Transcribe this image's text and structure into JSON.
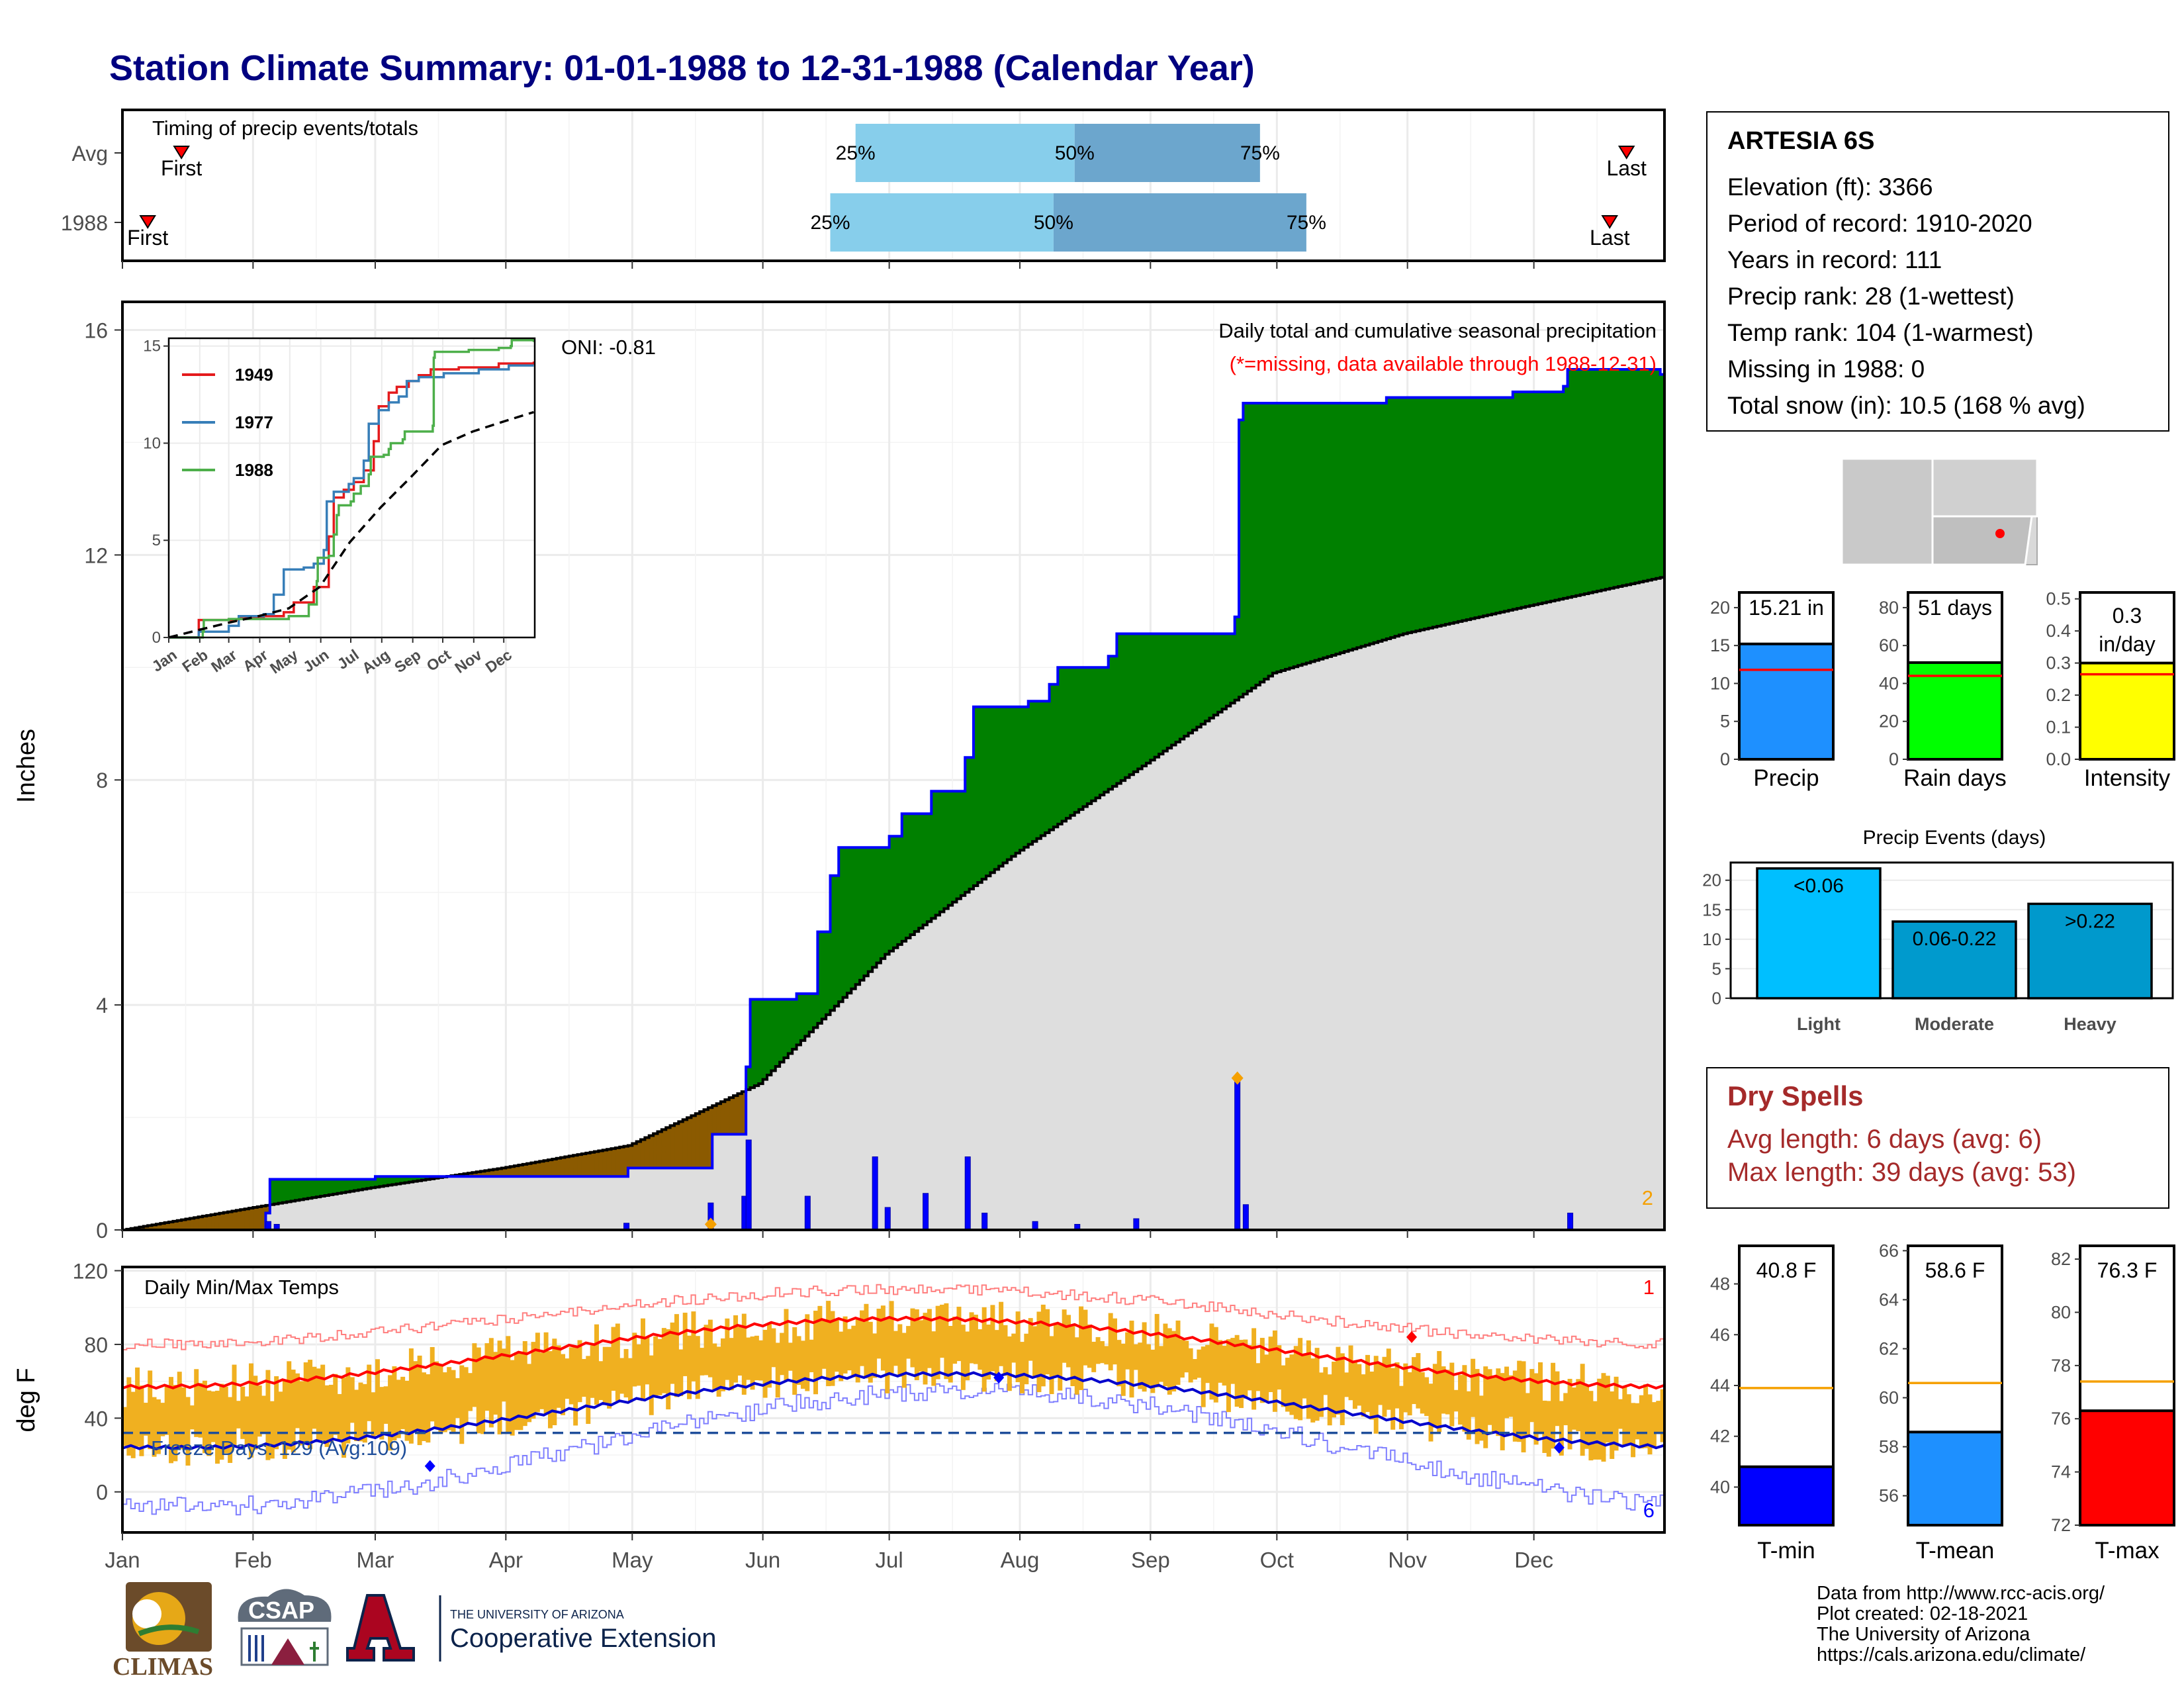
{
  "page_title": "Station Climate Summary: 01-01-1988 to 12-31-1988 (Calendar Year)",
  "station": {
    "name": "ARTESIA 6S",
    "lines": [
      "Elevation (ft): 3366",
      "Period of record: 1910-2020",
      "Years in record: 111",
      "Precip rank: 28 (1-wettest)",
      "Temp rank: 104 (1-warmest)",
      "Missing in 1988: 0",
      "Total snow (in): 10.5 (168 % avg)"
    ]
  },
  "dry_spells": {
    "title": "Dry Spells",
    "avg": "Avg length: 6 days (avg: 6)",
    "max": "Max length: 39 days (avg: 53)"
  },
  "credits": [
    "Data from http://www.rcc-acis.org/",
    "Plot created: 02-18-2021",
    "The University of Arizona",
    "https://cals.arizona.edu/climate/"
  ],
  "logos": {
    "climas": "CLIMAS",
    "csap": "CSAP",
    "ua_small": "THE UNIVERSITY OF ARIZONA",
    "ua_big": "Cooperative Extension"
  },
  "colors": {
    "title": "#000080",
    "green": "#008000",
    "brown": "#8B5A00",
    "normal_fill": "#dedede",
    "blue_line": "#0000ff",
    "orange": "#f0b020",
    "red": "#ff0000",
    "light_blue": "#87CEEB",
    "mid_blue": "#6CA6CD"
  },
  "chart_data": [
    {
      "id": "timing",
      "type": "bar",
      "title": "Timing of precip events/totals",
      "rows": [
        {
          "label": "Avg",
          "first_doy": 14,
          "last_doy": 357,
          "p25": 174,
          "p50": 226,
          "p75": 270
        },
        {
          "label": "1988",
          "first_doy": 6,
          "last_doy": 353,
          "p25": 168,
          "p50": 221,
          "p75": 281
        }
      ],
      "pct_labels": [
        "25%",
        "50%",
        "75%"
      ],
      "marker_labels": [
        "First",
        "Last"
      ],
      "x_range_doy": [
        0,
        366
      ]
    },
    {
      "id": "precip",
      "type": "area",
      "ylabel": "Inches",
      "annotation": "Daily total and cumulative seasonal precipitation",
      "missing_note": "(*=missing, data available through 1988-12-31)",
      "oni": "ONI: -0.81",
      "count_label": "2",
      "ylim": [
        0,
        16.5
      ],
      "yticks": [
        0,
        4,
        8,
        12,
        16
      ],
      "months": [
        "Jan",
        "Feb",
        "Mar",
        "Apr",
        "May",
        "Jun",
        "Jul",
        "Aug",
        "Sep",
        "Oct",
        "Nov",
        "Dec"
      ],
      "normal_cum_checkpoints": [
        [
          0,
          0
        ],
        [
          31,
          0.4
        ],
        [
          59,
          0.75
        ],
        [
          90,
          1.1
        ],
        [
          120,
          1.5
        ],
        [
          151,
          2.6
        ],
        [
          181,
          4.9
        ],
        [
          212,
          6.7
        ],
        [
          243,
          8.3
        ],
        [
          273,
          9.9
        ],
        [
          304,
          10.6
        ],
        [
          334,
          11.1
        ],
        [
          365,
          11.6
        ]
      ],
      "cum_1988_steps": [
        [
          0,
          0
        ],
        [
          34,
          0.3
        ],
        [
          35,
          0.9
        ],
        [
          60,
          0.95
        ],
        [
          120,
          1.1
        ],
        [
          140,
          1.7
        ],
        [
          148,
          2.9
        ],
        [
          149,
          4.1
        ],
        [
          160,
          4.2
        ],
        [
          165,
          5.3
        ],
        [
          168,
          6.3
        ],
        [
          170,
          6.8
        ],
        [
          182,
          7.0
        ],
        [
          185,
          7.4
        ],
        [
          192,
          7.8
        ],
        [
          200,
          8.4
        ],
        [
          202,
          9.3
        ],
        [
          215,
          9.4
        ],
        [
          220,
          9.7
        ],
        [
          222,
          10.0
        ],
        [
          234,
          10.2
        ],
        [
          236,
          10.6
        ],
        [
          264,
          10.9
        ],
        [
          265,
          14.4
        ],
        [
          266,
          14.7
        ],
        [
          300,
          14.8
        ],
        [
          330,
          14.9
        ],
        [
          342,
          15.0
        ],
        [
          343,
          15.3
        ],
        [
          365,
          15.21
        ]
      ],
      "daily_precip": [
        [
          34,
          0.15
        ],
        [
          36,
          0.1
        ],
        [
          119,
          0.12
        ],
        [
          139,
          0.48
        ],
        [
          147,
          0.6
        ],
        [
          148,
          1.6
        ],
        [
          162,
          0.6
        ],
        [
          178,
          1.3
        ],
        [
          181,
          0.4
        ],
        [
          190,
          0.65
        ],
        [
          200,
          1.3
        ],
        [
          204,
          0.3
        ],
        [
          216,
          0.15
        ],
        [
          226,
          0.1
        ],
        [
          240,
          0.2
        ],
        [
          264,
          2.7
        ],
        [
          266,
          0.45
        ],
        [
          343,
          0.3
        ]
      ],
      "max_marks": [
        [
          139,
          0.1
        ],
        [
          264,
          2.7
        ]
      ]
    },
    {
      "id": "temps",
      "type": "line",
      "title": "Daily Min/Max Temps",
      "ylabel": "deg F",
      "ylim": [
        -22,
        122
      ],
      "yticks": [
        0,
        40,
        80,
        120
      ],
      "freeze_label": "Freeze Days: 129 (Avg:109)",
      "freeze_line_f": 32,
      "count_max_label": "1",
      "count_min_label": "6",
      "months": [
        "Jan",
        "Feb",
        "Mar",
        "Apr",
        "May",
        "Jun",
        "Jul",
        "Aug",
        "Sep",
        "Oct",
        "Nov",
        "Dec"
      ],
      "avg_max": {
        "min": 57,
        "max": 94,
        "peak_doy": 187
      },
      "avg_min": {
        "min": 24,
        "max": 64,
        "peak_doy": 196
      },
      "record_max": {
        "min": 80,
        "max": 110
      },
      "record_min": {
        "min": -8,
        "max": 55
      }
    },
    {
      "id": "precip_summary",
      "type": "bar",
      "panels": [
        {
          "label": "Precip",
          "value": 15.21,
          "avg": 11.8,
          "text": "15.21 in",
          "ylim": [
            0,
            22
          ],
          "yticks": [
            0,
            5,
            10,
            15,
            20
          ],
          "color": "#1E90FF"
        },
        {
          "label": "Rain days",
          "value": 51,
          "avg": 44,
          "text": "51 days",
          "ylim": [
            0,
            88
          ],
          "yticks": [
            0,
            20,
            40,
            60,
            80
          ],
          "color": "#00FF00"
        },
        {
          "label": "Intensity",
          "value": 0.3,
          "avg": 0.265,
          "text": "0.3 in/day",
          "ylim": [
            0,
            0.52
          ],
          "yticks": [
            0.0,
            0.1,
            0.2,
            0.3,
            0.4,
            0.5
          ],
          "color": "#FFFF00"
        }
      ]
    },
    {
      "id": "precip_events",
      "type": "bar",
      "title": "Precip Events (days)",
      "categories": [
        "Light",
        "Moderate",
        "Heavy"
      ],
      "bar_labels": [
        "<0.06",
        "0.06-0.22",
        ">0.22"
      ],
      "values": [
        22,
        13,
        16
      ],
      "ylim": [
        0,
        23
      ],
      "yticks": [
        0,
        5,
        10,
        15,
        20
      ]
    },
    {
      "id": "temp_summary",
      "type": "bar",
      "panels": [
        {
          "label": "T-min",
          "value": 40.8,
          "avg": 43.9,
          "text": "40.8 F",
          "ylim": [
            38.5,
            49.5
          ],
          "yticks": [
            40,
            42,
            44,
            46,
            48
          ],
          "color": "#0000FF"
        },
        {
          "label": "T-mean",
          "value": 58.6,
          "avg": 60.6,
          "text": "58.6 F",
          "ylim": [
            54.8,
            66.2
          ],
          "yticks": [
            56,
            58,
            60,
            62,
            64,
            66
          ],
          "color": "#1E90FF"
        },
        {
          "label": "T-max",
          "value": 76.3,
          "avg": 77.4,
          "text": "76.3 F",
          "ylim": [
            72,
            82.5
          ],
          "yticks": [
            72,
            74,
            76,
            78,
            80,
            82
          ],
          "color": "#FF0000"
        }
      ]
    },
    {
      "id": "inset",
      "type": "line",
      "ylim": [
        0,
        15
      ],
      "yticks": [
        0,
        5,
        10,
        15
      ],
      "months": [
        "Jan",
        "Feb",
        "Mar",
        "Apr",
        "May",
        "Jun",
        "Jul",
        "Aug",
        "Sep",
        "Oct",
        "Nov",
        "Dec"
      ],
      "series": [
        {
          "name": "1949",
          "color": "#e41a1c",
          "points": [
            [
              0,
              0
            ],
            [
              30,
              0.9
            ],
            [
              70,
              1.0
            ],
            [
              95,
              1.1
            ],
            [
              115,
              1.3
            ],
            [
              125,
              1.8
            ],
            [
              145,
              2.6
            ],
            [
              160,
              5.2
            ],
            [
              165,
              7.2
            ],
            [
              175,
              7.6
            ],
            [
              185,
              8.0
            ],
            [
              195,
              8.6
            ],
            [
              205,
              10.1
            ],
            [
              210,
              11.9
            ],
            [
              220,
              12.6
            ],
            [
              228,
              12.9
            ],
            [
              240,
              13.2
            ],
            [
              250,
              13.5
            ],
            [
              262,
              13.8
            ],
            [
              290,
              13.9
            ],
            [
              330,
              14.1
            ],
            [
              365,
              14.2
            ]
          ]
        },
        {
          "name": "1977",
          "color": "#377eb8",
          "points": [
            [
              0,
              0
            ],
            [
              30,
              0.3
            ],
            [
              60,
              0.6
            ],
            [
              70,
              1.1
            ],
            [
              95,
              1.2
            ],
            [
              105,
              2.2
            ],
            [
              115,
              3.5
            ],
            [
              135,
              3.6
            ],
            [
              145,
              3.8
            ],
            [
              155,
              4.5
            ],
            [
              158,
              7.0
            ],
            [
              165,
              7.5
            ],
            [
              180,
              7.9
            ],
            [
              185,
              8.2
            ],
            [
              195,
              9.1
            ],
            [
              200,
              11.0
            ],
            [
              210,
              11.7
            ],
            [
              220,
              12.1
            ],
            [
              230,
              12.4
            ],
            [
              238,
              13.2
            ],
            [
              250,
              13.4
            ],
            [
              275,
              13.6
            ],
            [
              310,
              13.8
            ],
            [
              340,
              14.0
            ],
            [
              365,
              14.0
            ]
          ]
        },
        {
          "name": "1988",
          "color": "#4daf4a",
          "points": [
            [
              0,
              0
            ],
            [
              34,
              0.3
            ],
            [
              35,
              0.9
            ],
            [
              60,
              0.95
            ],
            [
              120,
              1.1
            ],
            [
              140,
              1.7
            ],
            [
              148,
              2.9
            ],
            [
              149,
              4.1
            ],
            [
              160,
              4.2
            ],
            [
              165,
              5.3
            ],
            [
              168,
              6.3
            ],
            [
              170,
              6.8
            ],
            [
              182,
              7.0
            ],
            [
              185,
              7.4
            ],
            [
              192,
              7.8
            ],
            [
              200,
              8.4
            ],
            [
              202,
              9.3
            ],
            [
              215,
              9.4
            ],
            [
              220,
              9.7
            ],
            [
              222,
              10.0
            ],
            [
              234,
              10.2
            ],
            [
              236,
              10.6
            ],
            [
              264,
              10.9
            ],
            [
              265,
              14.4
            ],
            [
              266,
              14.7
            ],
            [
              300,
              14.8
            ],
            [
              330,
              14.9
            ],
            [
              342,
              15.0
            ],
            [
              343,
              15.3
            ],
            [
              365,
              15.21
            ]
          ]
        },
        {
          "name": "avg",
          "color": "#000000",
          "points": [
            [
              0,
              0
            ],
            [
              31,
              0.4
            ],
            [
              59,
              0.75
            ],
            [
              90,
              1.1
            ],
            [
              120,
              1.5
            ],
            [
              151,
              2.6
            ],
            [
              181,
              4.9
            ],
            [
              212,
              6.7
            ],
            [
              243,
              8.3
            ],
            [
              273,
              9.9
            ],
            [
              304,
              10.6
            ],
            [
              334,
              11.1
            ],
            [
              365,
              11.6
            ]
          ]
        }
      ]
    }
  ]
}
